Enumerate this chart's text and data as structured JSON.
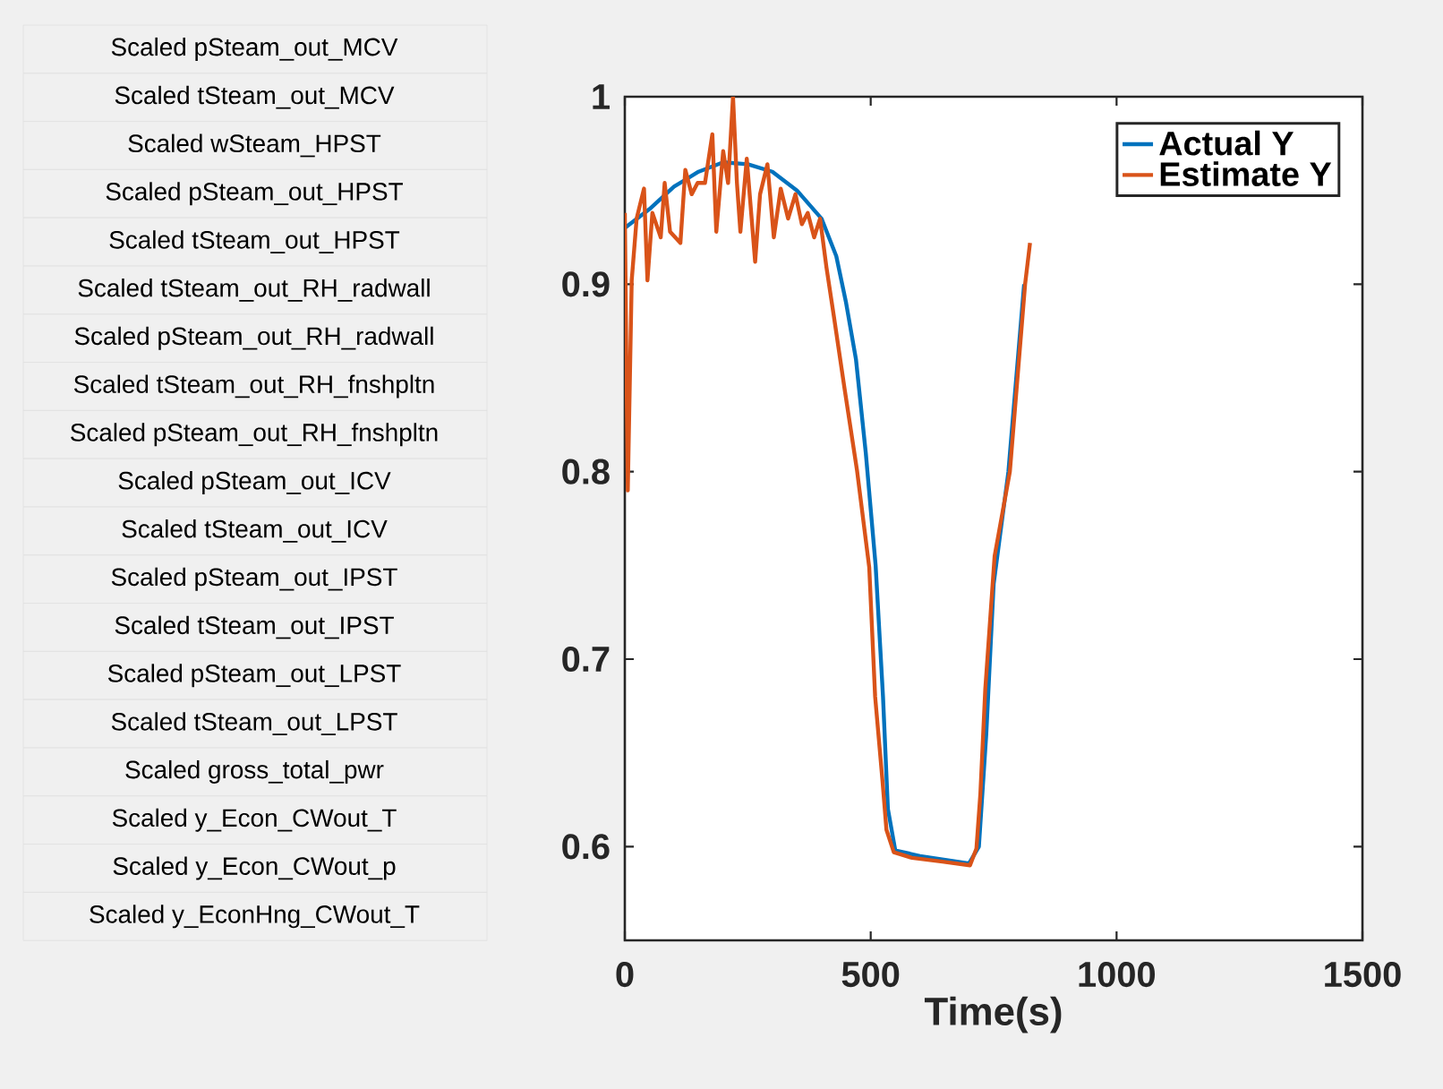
{
  "chart_data": {
    "type": "line",
    "xlabel": "Time(s)",
    "annotations": [
      "Scaled pSteam_out_MCV",
      "Scaled tSteam_out_MCV",
      "Scaled wSteam_HPST",
      "Scaled pSteam_out_HPST",
      "Scaled tSteam_out_HPST",
      "Scaled tSteam_out_RH_radwall",
      "Scaled pSteam_out_RH_radwall",
      "Scaled tSteam_out_RH_fnshpltn",
      "Scaled pSteam_out_RH_fnshpltn",
      "Scaled pSteam_out_ICV",
      "Scaled tSteam_out_ICV",
      "Scaled pSteam_out_IPST",
      "Scaled tSteam_out_IPST",
      "Scaled pSteam_out_LPST",
      "Scaled tSteam_out_LPST",
      "Scaled gross_total_pwr",
      "Scaled y_Econ_CWout_T",
      "Scaled y_Econ_CWout_p",
      "Scaled y_EconHng_CWout_T"
    ],
    "series": [
      {
        "name": "Actual Y",
        "color": "#0072bd",
        "x": [
          0,
          50,
          100,
          150,
          200,
          250,
          300,
          350,
          400,
          430,
          450,
          470,
          490,
          510,
          525,
          535,
          550,
          600,
          650,
          700,
          720,
          735,
          750,
          780,
          812
        ],
        "values": [
          0.93,
          0.94,
          0.952,
          0.96,
          0.965,
          0.964,
          0.96,
          0.95,
          0.935,
          0.915,
          0.89,
          0.86,
          0.81,
          0.75,
          0.68,
          0.62,
          0.598,
          0.595,
          0.593,
          0.591,
          0.6,
          0.66,
          0.74,
          0.8,
          0.9
        ]
      },
      {
        "name": "Estimate Y",
        "color": "#d95319",
        "x": [
          0,
          6,
          14,
          24,
          39,
          46,
          56,
          73,
          81,
          92,
          113,
          123,
          136,
          148,
          163,
          178,
          186,
          200,
          210,
          220,
          228,
          235,
          248,
          265,
          275,
          290,
          303,
          317,
          332,
          347,
          360,
          372,
          385,
          397,
          410,
          425,
          447,
          472,
          497,
          509,
          524,
          532,
          547,
          584,
          646,
          702,
          715,
          723,
          733,
          752,
          783,
          814,
          824
        ],
        "values": [
          0.938,
          0.79,
          0.902,
          0.935,
          0.951,
          0.902,
          0.938,
          0.925,
          0.954,
          0.928,
          0.922,
          0.961,
          0.948,
          0.954,
          0.954,
          0.98,
          0.928,
          0.971,
          0.954,
          1.0,
          0.954,
          0.928,
          0.967,
          0.912,
          0.948,
          0.964,
          0.925,
          0.951,
          0.935,
          0.948,
          0.932,
          0.938,
          0.925,
          0.935,
          0.909,
          0.883,
          0.844,
          0.801,
          0.749,
          0.68,
          0.635,
          0.609,
          0.597,
          0.594,
          0.592,
          0.59,
          0.599,
          0.628,
          0.684,
          0.755,
          0.8,
          0.9,
          0.922
        ]
      }
    ],
    "xlim": [
      0,
      1500
    ],
    "ylim": [
      0.55,
      1
    ],
    "xticks": [
      0,
      500,
      1000,
      1500
    ],
    "yticks": [
      0.6,
      0.7,
      0.8,
      0.9,
      1
    ],
    "legend": "top right",
    "grid": false,
    "line_style": "solid",
    "marker": "none"
  }
}
